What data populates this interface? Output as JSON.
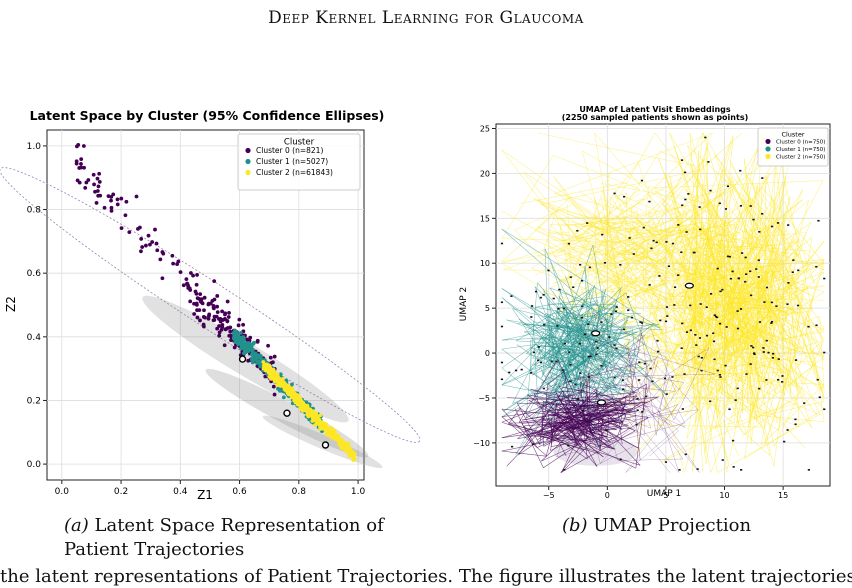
{
  "header": {
    "title": "Deep Kernel Learning for Glaucoma"
  },
  "figures": [
    {
      "caption_label": "(a)",
      "caption_text": "Latent Space Representation of Patient Trajectories",
      "chart_data": {
        "type": "scatter",
        "title": "Latent Space by Cluster (95% Confidence Ellipses)",
        "xlabel": "Z1",
        "ylabel": "Z2",
        "xlim": [
          -0.05,
          1.02
        ],
        "ylim": [
          -0.05,
          1.05
        ],
        "xticks": [
          "0.0",
          "0.2",
          "0.4",
          "0.6",
          "0.8",
          "1.0"
        ],
        "yticks": [
          "0.0",
          "0.2",
          "0.4",
          "0.6",
          "0.8",
          "1.0"
        ],
        "grid": true,
        "legend_title": "Cluster",
        "legend_position": "top-right",
        "series": [
          {
            "name": "Cluster 0 (n=821)",
            "color": "#440154"
          },
          {
            "name": "Cluster 1 (n=5027)",
            "color": "#21918c"
          },
          {
            "name": "Cluster 2 (n=61843)",
            "color": "#fde725"
          }
        ],
        "centroids": [
          [
            0.61,
            0.33
          ],
          [
            0.76,
            0.16
          ],
          [
            0.89,
            0.06
          ]
        ]
      }
    },
    {
      "caption_label": "(b)",
      "caption_text": "UMAP Projection",
      "chart_data": {
        "type": "scatter",
        "title": "UMAP of Latent Visit Embeddings",
        "subtitle": "(2250 sampled patients shown as points)",
        "xlabel": "UMAP 1",
        "ylabel": "UMAP 2",
        "xlim": [
          -9.5,
          19
        ],
        "ylim": [
          -14.8,
          25.5
        ],
        "xticks": [
          "−5",
          "0",
          "5",
          "10",
          "15"
        ],
        "yticks": [
          "−10",
          "−5",
          "0",
          "5",
          "10",
          "15",
          "20",
          "25"
        ],
        "grid": true,
        "legend_title": "Cluster",
        "legend_position": "top-right",
        "series": [
          {
            "name": "Cluster 0 (n=750)",
            "color": "#440154"
          },
          {
            "name": "Cluster 1 (n=750)",
            "color": "#21918c"
          },
          {
            "name": "Cluster 2 (n=750)",
            "color": "#fde725"
          }
        ],
        "centroids": [
          [
            -1,
            2.2
          ],
          [
            -0.5,
            -5.5
          ],
          [
            7,
            7.5
          ]
        ]
      }
    }
  ],
  "footer": {
    "text": "the latent representations of Patient Trajectories. The figure illustrates the latent trajectories of (a)"
  }
}
